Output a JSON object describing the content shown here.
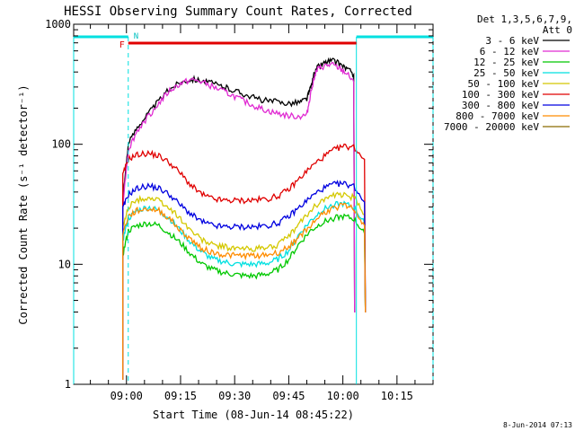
{
  "chart_data": {
    "type": "line",
    "title": "HESSI Observing Summary Count Rates, Corrected",
    "xlabel": "Start Time (08-Jun-14 08:45:22)",
    "ylabel": "Corrected Count Rate (s⁻¹ detector⁻¹)",
    "yscale": "log",
    "ylim": [
      1,
      1000
    ],
    "xlim": [
      "08:45:22",
      "10:25:00"
    ],
    "x_ticks": [
      "09:00",
      "09:15",
      "09:30",
      "09:45",
      "10:00",
      "10:15"
    ],
    "y_ticks": [
      "1",
      "10",
      "100",
      "1000"
    ],
    "legend": {
      "position": "top-right",
      "header": [
        "Det 1,3,5,6,7,9,",
        "Att 0"
      ]
    },
    "date_stamp": "8-Jun-2014 07:13",
    "night_intervals": [
      [
        "08:45:22",
        "09:00:30"
      ],
      [
        "10:03:45",
        "10:25:00"
      ]
    ],
    "night_label": "N",
    "flare_interval": [
      "09:00:30",
      "10:03:45"
    ],
    "flare_label": "F",
    "series": [
      {
        "name": "3 - 6 keV",
        "color": "#000000",
        "x": [
          "08:59:00",
          "09:00:30",
          "09:03",
          "09:06",
          "09:09",
          "09:12",
          "09:15",
          "09:18",
          "09:21",
          "09:24",
          "09:27",
          "09:30",
          "09:33",
          "09:36",
          "09:39",
          "09:42",
          "09:45",
          "09:48",
          "09:50",
          "09:51",
          "09:52",
          "09:53",
          "09:55",
          "09:57",
          "09:59",
          "10:01",
          "10:03"
        ],
        "values": [
          35,
          100,
          140,
          180,
          230,
          290,
          330,
          350,
          340,
          320,
          300,
          280,
          260,
          240,
          230,
          225,
          220,
          225,
          240,
          290,
          380,
          440,
          480,
          500,
          470,
          430,
          380
        ]
      },
      {
        "name": "6 - 12 keV",
        "color": "#e02ad2",
        "x": [
          "08:59:00",
          "09:00:30",
          "09:03",
          "09:06",
          "09:09",
          "09:12",
          "09:15",
          "09:18",
          "09:21",
          "09:24",
          "09:27",
          "09:30",
          "09:33",
          "09:36",
          "09:39",
          "09:42",
          "09:45",
          "09:48",
          "09:50",
          "09:51",
          "09:52",
          "09:53",
          "09:55",
          "09:57",
          "09:59",
          "10:01",
          "10:03"
        ],
        "values": [
          32,
          90,
          130,
          170,
          220,
          280,
          320,
          345,
          330,
          300,
          275,
          250,
          225,
          205,
          190,
          180,
          172,
          170,
          175,
          260,
          360,
          420,
          450,
          460,
          430,
          390,
          330
        ]
      },
      {
        "name": "12 - 25 keV",
        "color": "#00c800",
        "x": [
          "08:59:00",
          "09:00:30",
          "09:03",
          "09:06",
          "09:09",
          "09:12",
          "09:15",
          "09:18",
          "09:21",
          "09:24",
          "09:27",
          "09:30",
          "09:33",
          "09:36",
          "09:39",
          "09:42",
          "09:45",
          "09:48",
          "09:51",
          "09:54",
          "09:57",
          "10:00",
          "10:03",
          "10:06"
        ],
        "values": [
          12,
          19,
          21,
          22,
          21,
          18,
          15,
          12,
          10,
          9,
          8.5,
          8.2,
          8,
          8,
          8.3,
          9,
          11,
          15,
          19,
          22,
          24,
          25,
          24,
          18
        ]
      },
      {
        "name": "25 - 50 keV",
        "color": "#00e0e0",
        "x": [
          "08:59:00",
          "09:00:30",
          "09:03",
          "09:06",
          "09:09",
          "09:12",
          "09:15",
          "09:18",
          "09:21",
          "09:24",
          "09:27",
          "09:30",
          "09:33",
          "09:36",
          "09:39",
          "09:42",
          "09:45",
          "09:48",
          "09:51",
          "09:54",
          "09:57",
          "10:00",
          "10:03",
          "10:06"
        ],
        "values": [
          16,
          24,
          28,
          30,
          28,
          24,
          19,
          15,
          12.5,
          11,
          10.5,
          10,
          10,
          10,
          10.2,
          11,
          13,
          18,
          23,
          28,
          31,
          32,
          30,
          22
        ]
      },
      {
        "name": "50 - 100 keV",
        "color": "#d4c800",
        "x": [
          "08:59:00",
          "09:00:30",
          "09:03",
          "09:06",
          "09:09",
          "09:12",
          "09:15",
          "09:18",
          "09:21",
          "09:24",
          "09:27",
          "09:30",
          "09:33",
          "09:36",
          "09:39",
          "09:42",
          "09:45",
          "09:48",
          "09:51",
          "09:54",
          "09:57",
          "10:00",
          "10:03",
          "10:06"
        ],
        "values": [
          20,
          30,
          34,
          36,
          34,
          29,
          24,
          19,
          16,
          14.5,
          14,
          13.5,
          13.5,
          13.5,
          13.8,
          14.5,
          17,
          22,
          28,
          34,
          37,
          38,
          36,
          26
        ]
      },
      {
        "name": "100 - 300 keV",
        "color": "#e00000",
        "x": [
          "08:59:00",
          "09:00:30",
          "09:03",
          "09:06",
          "09:09",
          "09:12",
          "09:15",
          "09:18",
          "09:21",
          "09:24",
          "09:27",
          "09:30",
          "09:33",
          "09:36",
          "09:39",
          "09:42",
          "09:45",
          "09:48",
          "09:51",
          "09:54",
          "09:57",
          "10:00",
          "10:03",
          "10:06"
        ],
        "values": [
          55,
          75,
          82,
          84,
          80,
          70,
          57,
          45,
          38,
          35,
          34,
          34,
          34,
          34.5,
          35,
          37,
          42,
          52,
          64,
          76,
          88,
          96,
          95,
          75
        ]
      },
      {
        "name": "300 - 800 keV",
        "color": "#0000e0",
        "x": [
          "08:59:00",
          "09:00:30",
          "09:03",
          "09:06",
          "09:09",
          "09:12",
          "09:15",
          "09:18",
          "09:21",
          "09:24",
          "09:27",
          "09:30",
          "09:33",
          "09:36",
          "09:39",
          "09:42",
          "09:45",
          "09:48",
          "09:51",
          "09:54",
          "09:57",
          "10:00",
          "10:03",
          "10:06"
        ],
        "values": [
          29,
          38,
          43,
          45,
          43,
          38,
          31,
          26,
          22.5,
          21,
          20.5,
          20.5,
          20.5,
          20.5,
          21,
          22,
          25,
          30,
          36,
          42,
          46,
          47,
          45,
          33
        ]
      },
      {
        "name": "800 - 7000 keV",
        "color": "#ff8c00",
        "x": [
          "08:59:00",
          "09:00:30",
          "09:03",
          "09:06",
          "09:09",
          "09:12",
          "09:15",
          "09:18",
          "09:21",
          "09:24",
          "09:27",
          "09:30",
          "09:33",
          "09:36",
          "09:39",
          "09:42",
          "09:45",
          "09:48",
          "09:51",
          "09:54",
          "09:57",
          "10:00",
          "10:03",
          "10:06"
        ],
        "values": [
          18,
          25,
          28,
          29,
          28,
          24,
          19,
          16,
          13.5,
          12.5,
          12,
          11.8,
          11.8,
          11.8,
          12,
          12.5,
          14,
          17,
          21,
          26,
          29,
          31,
          29,
          21
        ]
      },
      {
        "name": "7000 - 20000 keV",
        "color": "#8b6a00",
        "x": [],
        "values": []
      }
    ]
  }
}
